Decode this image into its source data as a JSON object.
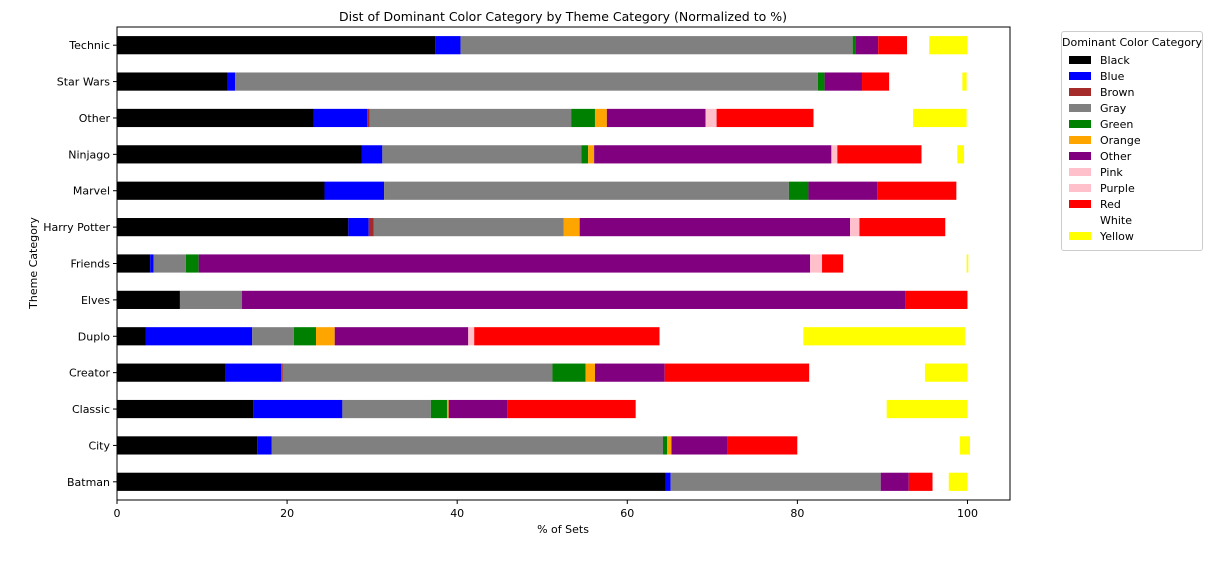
{
  "chart_data": {
    "type": "bar",
    "orientation": "horizontal",
    "stacked": true,
    "title": "Dist of Dominant Color Category by Theme Category (Normalized to %)",
    "xlabel": "% of Sets",
    "ylabel": "Theme Category",
    "xlim": [
      0,
      105
    ],
    "xticks": [
      "0",
      "20",
      "40",
      "60",
      "80",
      "100"
    ],
    "categories": [
      "Batman",
      "City",
      "Classic",
      "Creator",
      "Duplo",
      "Elves",
      "Friends",
      "Harry Potter",
      "Marvel",
      "Ninjago",
      "Other",
      "Star Wars",
      "Technic"
    ],
    "legend_title": "Dominant Color Category",
    "legend_position": "upper right, outside",
    "series": [
      {
        "name": "Black",
        "color": "#000000",
        "values": [
          64.5,
          16.5,
          16.0,
          12.7,
          3.4,
          7.4,
          3.9,
          27.2,
          24.4,
          28.8,
          23.1,
          13.0,
          37.4
        ]
      },
      {
        "name": "Blue",
        "color": "#0000ff",
        "values": [
          0.6,
          1.7,
          10.5,
          6.6,
          12.5,
          0.0,
          0.4,
          2.4,
          7.0,
          2.4,
          6.3,
          0.9,
          3.0
        ]
      },
      {
        "name": "Brown",
        "color": "#a52a2a",
        "values": [
          0,
          0,
          0,
          0.2,
          0,
          0,
          0,
          0.6,
          0,
          0,
          0.3,
          0,
          0
        ]
      },
      {
        "name": "Gray",
        "color": "#808080",
        "values": [
          24.7,
          46.0,
          10.4,
          31.7,
          4.9,
          7.3,
          3.8,
          22.3,
          47.6,
          23.4,
          23.7,
          68.5,
          46.1
        ]
      },
      {
        "name": "Green",
        "color": "#008000",
        "values": [
          0,
          0.5,
          1.9,
          3.9,
          2.6,
          0,
          1.5,
          0,
          2.3,
          0.8,
          2.8,
          0.8,
          0.3
        ]
      },
      {
        "name": "Orange",
        "color": "#ffa500",
        "values": [
          0,
          0.5,
          0.2,
          1.1,
          2.2,
          0,
          0,
          1.9,
          0,
          0.7,
          1.4,
          0,
          0
        ]
      },
      {
        "name": "Other",
        "color": "#800080",
        "values": [
          3.3,
          6.6,
          6.9,
          8.2,
          15.7,
          78.0,
          71.9,
          31.8,
          8.1,
          27.9,
          11.6,
          4.4,
          2.7
        ]
      },
      {
        "name": "Pink",
        "color": "#ffc0cb",
        "values": [
          0,
          0,
          0,
          0,
          0.7,
          0,
          1.4,
          1.1,
          0,
          0.7,
          1.3,
          0,
          0
        ]
      },
      {
        "name": "Purple",
        "color": "#ffc0cb",
        "values": [
          0,
          0,
          0,
          0,
          0,
          0,
          0,
          0,
          0,
          0,
          0,
          0,
          0
        ]
      },
      {
        "name": "Red",
        "color": "#ff0000",
        "values": [
          2.8,
          8.2,
          15.1,
          17.0,
          21.8,
          7.3,
          2.5,
          10.1,
          9.3,
          9.9,
          11.4,
          3.2,
          3.4
        ]
      },
      {
        "name": "White",
        "color": "#ffffff",
        "values": [
          1.9,
          19.1,
          29.5,
          13.6,
          16.9,
          0,
          14.5,
          2.6,
          1.3,
          4.2,
          11.7,
          8.6,
          2.6
        ]
      },
      {
        "name": "Yellow",
        "color": "#ffff00",
        "values": [
          2.2,
          1.2,
          9.5,
          5.0,
          19.0,
          0,
          0.2,
          0,
          0,
          0.8,
          6.3,
          0.5,
          4.5
        ]
      }
    ]
  }
}
